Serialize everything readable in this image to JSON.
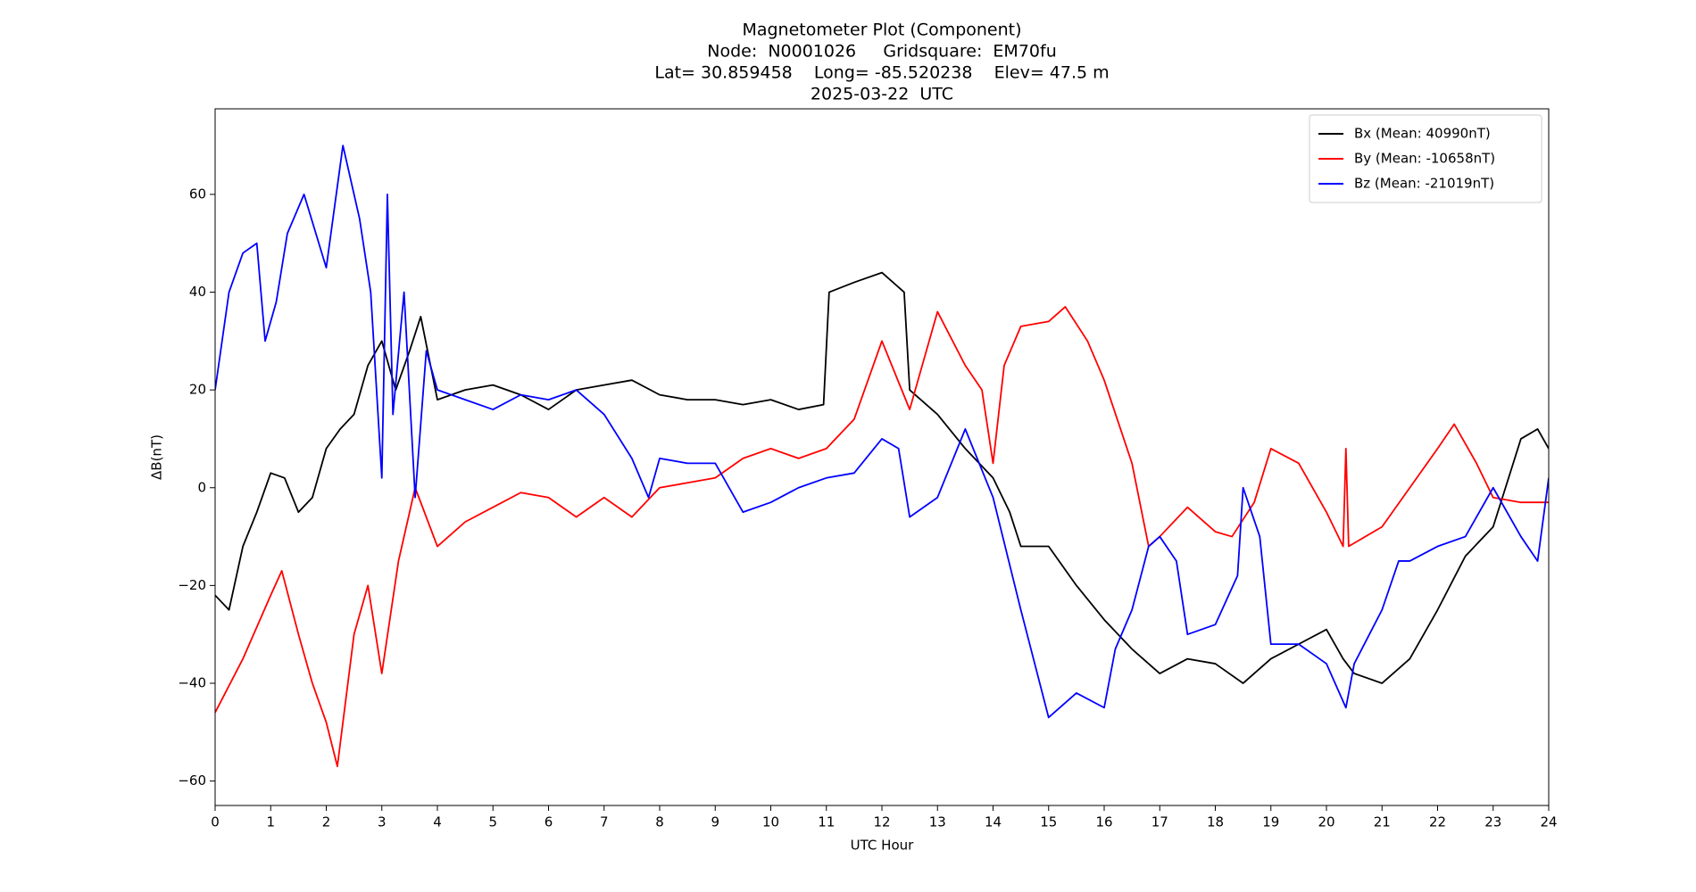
{
  "chart_data": {
    "type": "line",
    "title": [
      "Magnetometer Plot (Component)",
      "Node:  N0001026     Gridsquare:  EM70fu",
      "Lat= 30.859458    Long= -85.520238    Elev= 47.5 m",
      "2025-03-22  UTC"
    ],
    "xlabel": "UTC Hour",
    "ylabel": "ΔB(nT)",
    "xlim": [
      0,
      24
    ],
    "ylim": [
      -65,
      77.5
    ],
    "xticks": [
      0,
      1,
      2,
      3,
      4,
      5,
      6,
      7,
      8,
      9,
      10,
      11,
      12,
      13,
      14,
      15,
      16,
      17,
      18,
      19,
      20,
      21,
      22,
      23,
      24
    ],
    "yticks": [
      {
        "value": -60,
        "label": "−60"
      },
      {
        "value": -40,
        "label": "−40"
      },
      {
        "value": -20,
        "label": "−20"
      },
      0,
      20,
      40,
      60
    ],
    "legend": "upper right",
    "series": [
      {
        "name": "Bx (Mean: 40990nT)",
        "color": "#000000",
        "x": [
          0,
          0.25,
          0.5,
          0.75,
          1,
          1.25,
          1.5,
          1.75,
          2,
          2.25,
          2.5,
          2.75,
          3,
          3.25,
          3.5,
          3.7,
          4,
          4.5,
          5,
          5.5,
          6,
          6.5,
          7,
          7.5,
          8,
          8.5,
          9,
          9.5,
          10,
          10.5,
          10.95,
          11.05,
          11.5,
          12,
          12.4,
          12.5,
          13,
          13.5,
          14,
          14.3,
          14.5,
          15,
          15.5,
          16,
          16.5,
          17,
          17.5,
          18,
          18.5,
          19,
          19.5,
          20,
          20.3,
          20.5,
          21,
          21.5,
          22,
          22.5,
          23,
          23.5,
          23.8,
          24
        ],
        "values": [
          -22,
          -25,
          -12,
          -5,
          3,
          2,
          -5,
          -2,
          8,
          12,
          15,
          25,
          30,
          20,
          28,
          35,
          18,
          20,
          21,
          19,
          16,
          20,
          21,
          22,
          19,
          18,
          18,
          17,
          18,
          16,
          17,
          40,
          42,
          44,
          40,
          20,
          15,
          8,
          2,
          -5,
          -12,
          -12,
          -20,
          -27,
          -33,
          -38,
          -35,
          -36,
          -40,
          -35,
          -32,
          -29,
          -35,
          -38,
          -40,
          -35,
          -25,
          -14,
          -8,
          10,
          12,
          8
        ]
      },
      {
        "name": "By (Mean: -10658nT)",
        "color": "#ff0000",
        "x": [
          0,
          0.5,
          1,
          1.2,
          1.5,
          1.75,
          2,
          2.2,
          2.5,
          2.75,
          3,
          3.3,
          3.6,
          4,
          4.5,
          5,
          5.5,
          6,
          6.5,
          7,
          7.5,
          8,
          8.5,
          9,
          9.5,
          10,
          10.5,
          11,
          11.5,
          12,
          12.5,
          13,
          13.5,
          13.8,
          14,
          14.2,
          14.5,
          15,
          15.3,
          15.7,
          16,
          16.5,
          16.8,
          17,
          17.5,
          18,
          18.3,
          18.7,
          19,
          19.5,
          20,
          20.3,
          20.35,
          20.4,
          21,
          21.5,
          22,
          22.3,
          22.7,
          23,
          23.5,
          24
        ],
        "values": [
          -46,
          -35,
          -22,
          -17,
          -30,
          -40,
          -48,
          -57,
          -30,
          -20,
          -38,
          -15,
          0,
          -12,
          -7,
          -4,
          -1,
          -2,
          -6,
          -2,
          -6,
          0,
          1,
          2,
          6,
          8,
          6,
          8,
          14,
          30,
          16,
          36,
          25,
          20,
          5,
          25,
          33,
          34,
          37,
          30,
          22,
          5,
          -12,
          -10,
          -4,
          -9,
          -10,
          -3,
          8,
          5,
          -5,
          -12,
          8,
          -12,
          -8,
          0,
          8,
          13,
          5,
          -2,
          -3,
          -3
        ]
      },
      {
        "name": "Bz (Mean: -21019nT)",
        "color": "#0000ff",
        "x": [
          0,
          0.25,
          0.5,
          0.75,
          0.9,
          1.1,
          1.3,
          1.6,
          2,
          2.3,
          2.6,
          2.8,
          3,
          3.1,
          3.2,
          3.4,
          3.6,
          3.8,
          4,
          4.5,
          5,
          5.5,
          6,
          6.5,
          7,
          7.5,
          7.8,
          8,
          8.5,
          9,
          9.5,
          10,
          10.5,
          11,
          11.5,
          12,
          12.3,
          12.5,
          13,
          13.5,
          14,
          14.5,
          15,
          15.5,
          16,
          16.2,
          16.5,
          16.8,
          17,
          17.3,
          17.5,
          18,
          18.4,
          18.5,
          18.8,
          19,
          19.5,
          20,
          20.35,
          20.5,
          21,
          21.3,
          21.5,
          22,
          22.5,
          23,
          23.5,
          23.8,
          24
        ],
        "values": [
          20,
          40,
          48,
          50,
          30,
          38,
          52,
          60,
          45,
          70,
          55,
          40,
          2,
          60,
          15,
          40,
          -2,
          28,
          20,
          18,
          16,
          19,
          18,
          20,
          15,
          6,
          -2,
          6,
          5,
          5,
          -5,
          -3,
          0,
          2,
          3,
          10,
          8,
          -6,
          -2,
          12,
          -2,
          -25,
          -47,
          -42,
          -45,
          -33,
          -25,
          -12,
          -10,
          -15,
          -30,
          -28,
          -18,
          0,
          -10,
          -32,
          -32,
          -36,
          -45,
          -36,
          -25,
          -15,
          -15,
          -12,
          -10,
          0,
          -10,
          -15,
          2
        ]
      }
    ]
  }
}
